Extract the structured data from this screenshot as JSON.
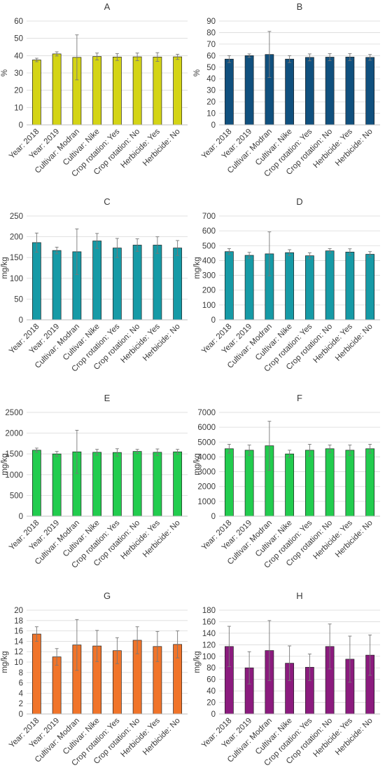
{
  "chart_data": [
    {
      "panel": "A",
      "type": "bar",
      "title": "A",
      "ylabel": "%",
      "ylim": [
        0,
        60
      ],
      "ytick_step": 10,
      "color": "#D4D415",
      "grid": true,
      "categories": [
        "Year: 2018",
        "Year: 2019",
        "Cultivar: Modran",
        "Cultivar: Nike",
        "Crop rotation: Yes",
        "Crop rotation: No",
        "Herbicide: Yes",
        "Herbicide: No"
      ],
      "values": [
        37.5,
        41,
        39,
        39.5,
        39.2,
        39.3,
        39.2,
        39.3
      ],
      "errors": [
        1,
        1.2,
        13,
        2,
        2,
        2.2,
        2.5,
        1.5
      ]
    },
    {
      "panel": "B",
      "type": "bar",
      "title": "B",
      "ylabel": "%",
      "ylim": [
        0,
        90
      ],
      "ytick_step": 10,
      "color": "#10507E",
      "grid": true,
      "categories": [
        "Year: 2018",
        "Year: 2019",
        "Cultivar: Modran",
        "Cultivar: Nike",
        "Crop rotation: Yes",
        "Crop rotation: No",
        "Herbicide: Yes",
        "Herbicide: No"
      ],
      "values": [
        57,
        60,
        61,
        57,
        58.5,
        58.7,
        58.8,
        58.5
      ],
      "errors": [
        3,
        1.5,
        20,
        3,
        3,
        3,
        3,
        2.5
      ]
    },
    {
      "panel": "C",
      "type": "bar",
      "title": "C",
      "ylabel": "mg/kg",
      "ylim": [
        0,
        250
      ],
      "ytick_step": 50,
      "color": "#169AA6",
      "grid": true,
      "categories": [
        "Year: 2018",
        "Year: 2019",
        "Cultivar: Modran",
        "Cultivar: Nike",
        "Crop rotation: Yes",
        "Crop rotation: No",
        "Herbicide: Yes",
        "Herbicide: No"
      ],
      "values": [
        186,
        167,
        164,
        190,
        173,
        180,
        180,
        173
      ],
      "errors": [
        23,
        8,
        55,
        18,
        23,
        15,
        20,
        18
      ]
    },
    {
      "panel": "D",
      "type": "bar",
      "title": "D",
      "ylabel": "mg/kg",
      "ylim": [
        0,
        700
      ],
      "ytick_step": 100,
      "color": "#169AA6",
      "grid": true,
      "categories": [
        "Year: 2018",
        "Year: 2019",
        "Cultivar: Modran",
        "Cultivar: Nike",
        "Crop rotation: Yes",
        "Crop rotation: No",
        "Herbicide: Yes",
        "Herbicide: No"
      ],
      "values": [
        460,
        435,
        445,
        453,
        432,
        465,
        457,
        442
      ],
      "errors": [
        20,
        20,
        148,
        20,
        20,
        15,
        22,
        18
      ]
    },
    {
      "panel": "E",
      "type": "bar",
      "title": "E",
      "ylabel": "mg/kg",
      "ylim": [
        0,
        2500
      ],
      "ytick_step": 500,
      "color": "#22CC4E",
      "grid": true,
      "categories": [
        "Year: 2018",
        "Year: 2019",
        "Cultivar: Modran",
        "Cultivar: Nike",
        "Crop rotation: Yes",
        "Crop rotation: No",
        "Herbicide: Yes",
        "Herbicide: No"
      ],
      "values": [
        1590,
        1500,
        1550,
        1540,
        1535,
        1560,
        1540,
        1550
      ],
      "errors": [
        50,
        60,
        520,
        70,
        90,
        50,
        80,
        60
      ]
    },
    {
      "panel": "F",
      "type": "bar",
      "title": "F",
      "ylabel": "mg/kg",
      "ylim": [
        0,
        7000
      ],
      "ytick_step": 1000,
      "color": "#22CC4E",
      "grid": true,
      "categories": [
        "Year: 2018",
        "Year: 2019",
        "Cultivar: Modran",
        "Cultivar: Nike",
        "Crop rotation: Yes",
        "Crop rotation: No",
        "Herbicide: Yes",
        "Herbicide: No"
      ],
      "values": [
        4550,
        4450,
        4750,
        4200,
        4450,
        4550,
        4450,
        4550
      ],
      "errors": [
        300,
        350,
        1650,
        250,
        400,
        250,
        350,
        300
      ]
    },
    {
      "panel": "G",
      "type": "bar",
      "title": "G",
      "ylabel": "mg/kg",
      "ylim": [
        0,
        20
      ],
      "ytick_step": 2,
      "color": "#F0742A",
      "grid": true,
      "categories": [
        "Year: 2018",
        "Year: 2019",
        "Cultivar: Modran",
        "Cultivar: Nike",
        "Crop rotation: Yes",
        "Crop rotation: No",
        "Herbicide: Yes",
        "Herbicide: No"
      ],
      "values": [
        15.4,
        11,
        13.3,
        13.1,
        12.2,
        14.2,
        13,
        13.4
      ],
      "errors": [
        1.4,
        1.6,
        4.9,
        3,
        2.5,
        2.6,
        2.9,
        2.6
      ]
    },
    {
      "panel": "H",
      "type": "bar",
      "title": "H",
      "ylabel": "mg/kg",
      "ylim": [
        0,
        180
      ],
      "ytick_step": 20,
      "color": "#8B1B7E",
      "grid": true,
      "categories": [
        "Year: 2018",
        "Year: 2019",
        "Cultivar: Modran",
        "Cultivar: Nike",
        "Crop rotation: Yes",
        "Crop rotation: No",
        "Herbicide: Yes",
        "Herbicide: No"
      ],
      "values": [
        117,
        80,
        110,
        88,
        81,
        117,
        95,
        102
      ],
      "errors": [
        35,
        28,
        52,
        30,
        23,
        39,
        40,
        35
      ]
    }
  ]
}
